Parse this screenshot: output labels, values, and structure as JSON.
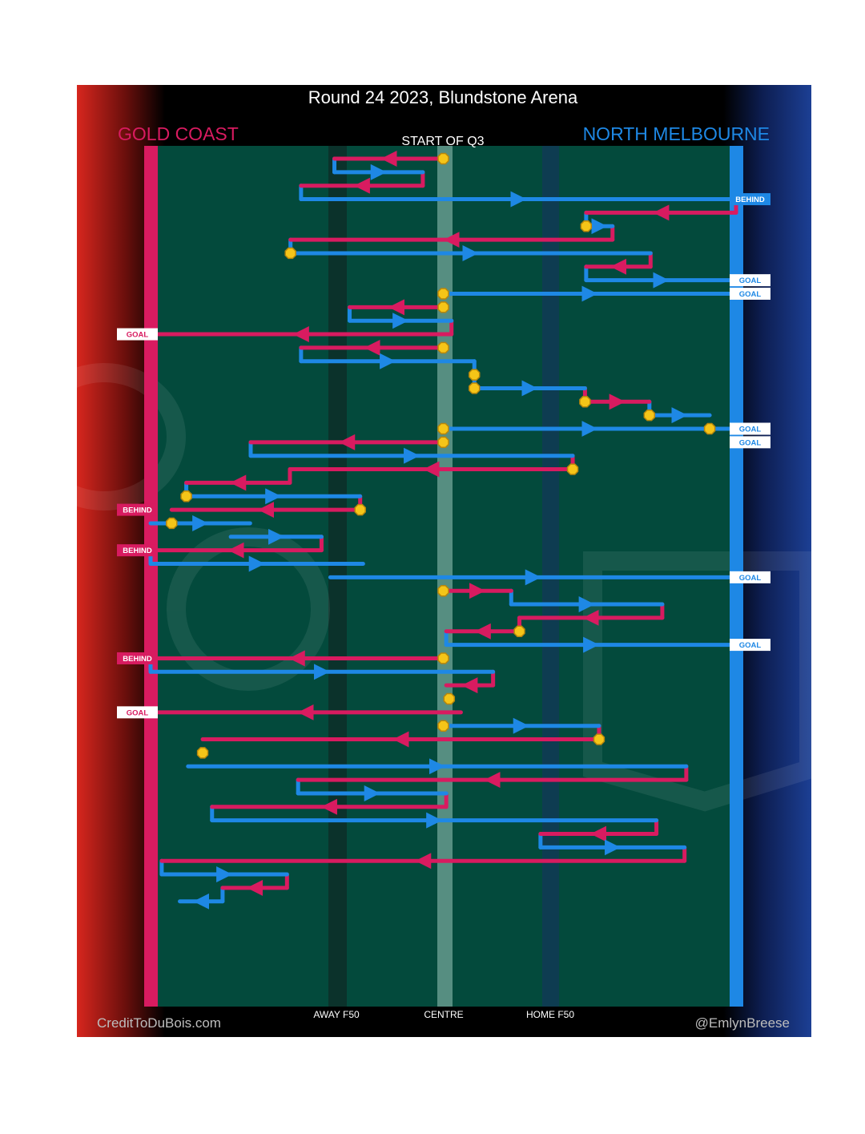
{
  "title": "Round 24 2023, Blundstone Arena",
  "subtitle": "START OF Q3",
  "teams": {
    "home": {
      "name": "GOLD COAST",
      "color": "#d81b60",
      "gradient": "#d7261e"
    },
    "away": {
      "name": "NORTH MELBOURNE",
      "color": "#1e88e5",
      "gradient": "#1c3f94"
    }
  },
  "axis": {
    "away_f50": "AWAY F50",
    "centre": "CENTRE",
    "home_f50": "HOME F50"
  },
  "credits": {
    "left": "CreditToDuBois.com",
    "right": "@EmlynBreese"
  },
  "colors": {
    "field": "#034a3c",
    "stoppage": "#f5c518",
    "stoppage_ring": "#b8860b"
  },
  "chart_data": {
    "type": "line",
    "x_axis": "field position, 0 = Gold Coast goal line, 100 = North Melbourne goal line",
    "xlim": [
      0,
      100
    ],
    "ticks": [
      {
        "x": 31,
        "label": "AWAY F50"
      },
      {
        "x": 50,
        "label": "CENTRE"
      },
      {
        "x": 70,
        "label": "HOME F50"
      }
    ],
    "segments": [
      {
        "team": "GC",
        "x": [
          50,
          31.4
        ],
        "y": [
          1,
          1
        ]
      },
      {
        "team": "NM",
        "x": [
          31.4,
          46.5
        ],
        "y": [
          2,
          2
        ]
      },
      {
        "team": "GC",
        "x": [
          46.5,
          25.7
        ],
        "y": [
          3,
          3
        ]
      },
      {
        "team": "NM",
        "x": [
          25.7,
          100
        ],
        "y": [
          4,
          4
        ]
      },
      {
        "team": "GC",
        "x": [
          100,
          74.4
        ],
        "y": [
          5,
          5
        ]
      },
      {
        "team": "NM",
        "x": [
          74.4,
          78.9
        ],
        "y": [
          6,
          6
        ]
      },
      {
        "team": "GC",
        "x": [
          78.9,
          23.9
        ],
        "y": [
          7,
          7
        ]
      },
      {
        "team": "NM",
        "x": [
          23.9,
          85.4
        ],
        "y": [
          8,
          8
        ]
      },
      {
        "team": "GC",
        "x": [
          85.4,
          74.4
        ],
        "y": [
          9,
          9
        ]
      },
      {
        "team": "NM",
        "x": [
          74.4,
          100
        ],
        "y": [
          10,
          10
        ]
      },
      {
        "team": "NM",
        "x": [
          50,
          100
        ],
        "y": [
          11,
          11
        ]
      },
      {
        "team": "GC",
        "x": [
          50,
          34
        ],
        "y": [
          12,
          12
        ]
      },
      {
        "team": "NM",
        "x": [
          34,
          51.4
        ],
        "y": [
          13,
          13
        ]
      },
      {
        "team": "GC",
        "x": [
          51.4,
          0
        ],
        "y": [
          14,
          14
        ]
      },
      {
        "team": "GC",
        "x": [
          50,
          25.7
        ],
        "y": [
          15,
          15
        ]
      },
      {
        "team": "NM",
        "x": [
          25.7,
          55.3
        ],
        "y": [
          16,
          16
        ]
      },
      {
        "team": "NM",
        "x": [
          55.3,
          74.2
        ],
        "y": [
          18,
          18
        ]
      },
      {
        "team": "GC",
        "x": [
          74.2,
          85.2
        ],
        "y": [
          19,
          19
        ]
      },
      {
        "team": "NM",
        "x": [
          85.2,
          95.5
        ],
        "y": [
          20,
          20
        ]
      },
      {
        "team": "NM",
        "x": [
          50,
          100
        ],
        "y": [
          21,
          21
        ]
      },
      {
        "team": "GC",
        "x": [
          50,
          17.1
        ],
        "y": [
          22,
          22
        ]
      },
      {
        "team": "NM",
        "x": [
          17.1,
          72.1
        ],
        "y": [
          23,
          23
        ]
      },
      {
        "team": "GC",
        "x": [
          72.1,
          23.8
        ],
        "y": [
          24,
          24
        ]
      },
      {
        "team": "GC",
        "x": [
          23.8,
          6.1
        ],
        "y": [
          25,
          25
        ]
      },
      {
        "team": "NM",
        "x": [
          6.1,
          35.8
        ],
        "y": [
          26,
          26
        ]
      },
      {
        "team": "GC",
        "x": [
          35.8,
          3.6
        ],
        "y": [
          27,
          27
        ]
      },
      {
        "team": "NM",
        "x": [
          0,
          17
        ],
        "y": [
          28,
          28
        ]
      },
      {
        "team": "NM",
        "x": [
          13.7,
          29.2
        ],
        "y": [
          29,
          29
        ]
      },
      {
        "team": "GC",
        "x": [
          29.2,
          0
        ],
        "y": [
          30,
          30
        ]
      },
      {
        "team": "NM",
        "x": [
          0,
          36.3
        ],
        "y": [
          31,
          31
        ]
      },
      {
        "team": "NM",
        "x": [
          30.7,
          100
        ],
        "y": [
          32,
          32
        ]
      },
      {
        "team": "GC",
        "x": [
          50,
          61.6
        ],
        "y": [
          33,
          33
        ]
      },
      {
        "team": "NM",
        "x": [
          61.6,
          87.4
        ],
        "y": [
          34,
          34
        ]
      },
      {
        "team": "GC",
        "x": [
          87.4,
          63
        ],
        "y": [
          35,
          35
        ]
      },
      {
        "team": "GC",
        "x": [
          63,
          50.5
        ],
        "y": [
          36,
          36
        ]
      },
      {
        "team": "NM",
        "x": [
          50.5,
          100
        ],
        "y": [
          37,
          37
        ]
      },
      {
        "team": "GC",
        "x": [
          50,
          0
        ],
        "y": [
          38,
          38
        ]
      },
      {
        "team": "NM",
        "x": [
          0,
          58.5
        ],
        "y": [
          39,
          39
        ]
      },
      {
        "team": "GC",
        "x": [
          58.5,
          50.5
        ],
        "y": [
          40,
          40
        ]
      },
      {
        "team": "GC",
        "x": [
          53,
          0
        ],
        "y": [
          42,
          42
        ]
      },
      {
        "team": "NM",
        "x": [
          50,
          76.6
        ],
        "y": [
          43,
          43
        ]
      },
      {
        "team": "GC",
        "x": [
          76.6,
          8.9
        ],
        "y": [
          44,
          44
        ]
      },
      {
        "team": "NM",
        "x": [
          6.4,
          91.5
        ],
        "y": [
          46,
          46
        ]
      },
      {
        "team": "GC",
        "x": [
          91.5,
          25.2
        ],
        "y": [
          47,
          47
        ]
      },
      {
        "team": "NM",
        "x": [
          25.2,
          50.5
        ],
        "y": [
          48,
          48
        ]
      },
      {
        "team": "GC",
        "x": [
          50.5,
          10.5
        ],
        "y": [
          49,
          49
        ]
      },
      {
        "team": "NM",
        "x": [
          10.5,
          86.4
        ],
        "y": [
          50,
          50
        ]
      },
      {
        "team": "GC",
        "x": [
          86.4,
          66.6
        ],
        "y": [
          51,
          51
        ]
      },
      {
        "team": "NM",
        "x": [
          66.6,
          91.2
        ],
        "y": [
          52,
          52
        ]
      },
      {
        "team": "GC",
        "x": [
          91.2,
          1.9
        ],
        "y": [
          53,
          53
        ]
      },
      {
        "team": "NM",
        "x": [
          1.9,
          23.3
        ],
        "y": [
          54,
          54
        ]
      },
      {
        "team": "GC",
        "x": [
          23.3,
          12.3
        ],
        "y": [
          55,
          55
        ]
      },
      {
        "team": "NM",
        "x": [
          12.3,
          5
        ],
        "y": [
          56,
          56
        ]
      }
    ],
    "stoppages": [
      {
        "x": 50,
        "y": 1
      },
      {
        "x": 74.4,
        "y": 6
      },
      {
        "x": 23.9,
        "y": 8
      },
      {
        "x": 50,
        "y": 11
      },
      {
        "x": 50,
        "y": 12
      },
      {
        "x": 50,
        "y": 15
      },
      {
        "x": 55.3,
        "y": 17
      },
      {
        "x": 55.3,
        "y": 18
      },
      {
        "x": 74.2,
        "y": 19
      },
      {
        "x": 85.2,
        "y": 20
      },
      {
        "x": 95.5,
        "y": 21
      },
      {
        "x": 50,
        "y": 21
      },
      {
        "x": 50,
        "y": 22
      },
      {
        "x": 72.1,
        "y": 24
      },
      {
        "x": 6.1,
        "y": 26
      },
      {
        "x": 35.8,
        "y": 27
      },
      {
        "x": 3.6,
        "y": 28
      },
      {
        "x": 50,
        "y": 33
      },
      {
        "x": 63,
        "y": 36
      },
      {
        "x": 50,
        "y": 38
      },
      {
        "x": 51,
        "y": 41
      },
      {
        "x": 50,
        "y": 43
      },
      {
        "x": 76.6,
        "y": 44
      },
      {
        "x": 8.9,
        "y": 45
      }
    ],
    "scores": [
      {
        "team": "NM",
        "label": "BEHIND",
        "y": 4
      },
      {
        "team": "NM",
        "label": "GOAL",
        "y": 10
      },
      {
        "team": "NM",
        "label": "GOAL",
        "y": 11
      },
      {
        "team": "GC",
        "label": "GOAL",
        "y": 14
      },
      {
        "team": "NM",
        "label": "GOAL",
        "y": 21
      },
      {
        "team": "NM",
        "label": "GOAL",
        "y": 22
      },
      {
        "team": "GC",
        "label": "BEHIND",
        "y": 27
      },
      {
        "team": "GC",
        "label": "BEHIND",
        "y": 30
      },
      {
        "team": "NM",
        "label": "GOAL",
        "y": 32
      },
      {
        "team": "NM",
        "label": "GOAL",
        "y": 37
      },
      {
        "team": "GC",
        "label": "BEHIND",
        "y": 38
      },
      {
        "team": "GC",
        "label": "GOAL",
        "y": 42
      }
    ]
  }
}
